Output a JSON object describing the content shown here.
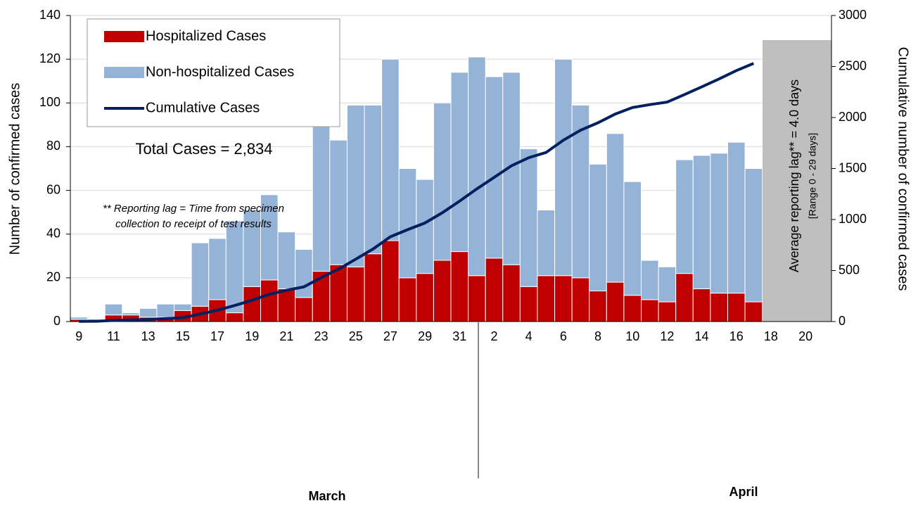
{
  "chart_data": {
    "type": "bar",
    "categories": [
      "9",
      null,
      "11",
      null,
      "13",
      null,
      "15",
      null,
      "17",
      null,
      "19",
      null,
      "21",
      null,
      "23",
      null,
      "25",
      null,
      "27",
      null,
      "29",
      null,
      "31",
      null,
      "2",
      null,
      "4",
      null,
      "6",
      null,
      "8",
      null,
      "10",
      null,
      "12",
      null,
      "14",
      null,
      "16",
      null,
      "18",
      null,
      "20",
      null
    ],
    "months": [
      "March",
      "April"
    ],
    "series": [
      {
        "name": "Hospitalized Cases",
        "color": "#c00000",
        "values": [
          1,
          1,
          3,
          3,
          2,
          2,
          5,
          7,
          10,
          4,
          16,
          19,
          15,
          11,
          23,
          26,
          25,
          31,
          37,
          20,
          22,
          28,
          32,
          21,
          29,
          26,
          16,
          21,
          21,
          20,
          14,
          18,
          12,
          10,
          9,
          22,
          15,
          13,
          13,
          9,
          null,
          null,
          null,
          null
        ]
      },
      {
        "name": "Non-hospitalized Cases",
        "color": "#95b3d7",
        "values": [
          1,
          0,
          5,
          1,
          4,
          6,
          3,
          29,
          28,
          42,
          35,
          39,
          26,
          22,
          67,
          57,
          74,
          68,
          83,
          50,
          43,
          72,
          82,
          100,
          83,
          88,
          63,
          30,
          99,
          79,
          58,
          68,
          52,
          18,
          16,
          52,
          61,
          64,
          69,
          61,
          null,
          null,
          null,
          null
        ]
      },
      {
        "name": "Cumulative Cases",
        "color": "#002060",
        "axis": "y2",
        "values": [
          2,
          3,
          11,
          15,
          21,
          29,
          37,
          73,
          111,
          157,
          208,
          266,
          307,
          340,
          430,
          513,
          612,
          711,
          831,
          901,
          966,
          1066,
          1180,
          1301,
          1413,
          1527,
          1606,
          1657,
          1777,
          1876,
          1948,
          2034,
          2098,
          2126,
          2151,
          2225,
          2301,
          2378,
          2460,
          2530,
          null,
          null,
          null,
          null
        ]
      }
    ],
    "ylim": [
      0,
      140
    ],
    "yticks": [
      0,
      20,
      40,
      60,
      80,
      100,
      120,
      140
    ],
    "y2lim": [
      0,
      3000
    ],
    "y2ticks": [
      0,
      500,
      1000,
      1500,
      2000,
      2500,
      3000
    ],
    "ylabel": "Number of confirmed cases",
    "y2label": "Cumulative number of confirmed cases",
    "total_text": "Total Cases = 2,834",
    "note": [
      "** Reporting lag = Time from specimen",
      "collection to receipt of test results"
    ],
    "lag_text": "Average reporting lag**  = 4.0 days",
    "range_text": "[Range 0 - 29 days]",
    "grid": true
  }
}
